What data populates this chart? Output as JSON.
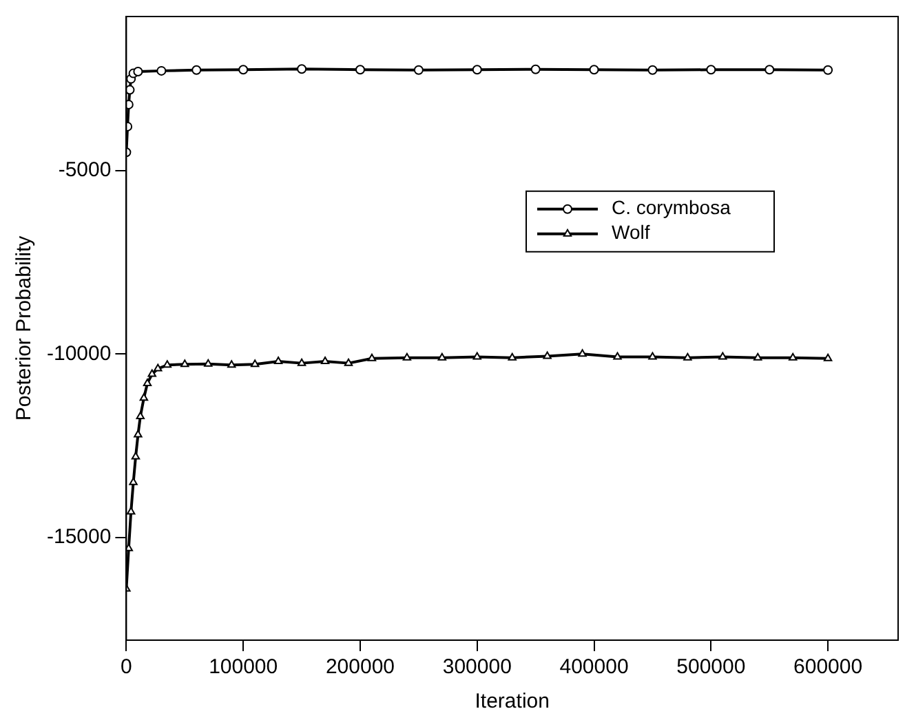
{
  "chart_data": {
    "type": "line",
    "xlabel": "Iteration",
    "ylabel": "Posterior Probability",
    "xlim": [
      0,
      660000
    ],
    "xticks": [
      0,
      100000,
      200000,
      300000,
      400000,
      500000,
      600000
    ],
    "ylim": [
      -17800,
      -800
    ],
    "yticks": [
      -15000,
      -10000,
      -5000
    ],
    "grid": false,
    "legend": "right",
    "line_style": "solid",
    "series": [
      {
        "name": "C. corymbosa",
        "color": "#000000",
        "marker": "circle",
        "x": [
          0,
          1000,
          2000,
          3000,
          4000,
          6000,
          10000,
          30000,
          60000,
          100000,
          150000,
          200000,
          250000,
          300000,
          350000,
          400000,
          450000,
          500000,
          550000,
          600000
        ],
        "values": [
          -4500,
          -3800,
          -3200,
          -2800,
          -2500,
          -2350,
          -2300,
          -2280,
          -2260,
          -2250,
          -2230,
          -2250,
          -2260,
          -2250,
          -2240,
          -2250,
          -2260,
          -2250,
          -2250,
          -2260
        ]
      },
      {
        "name": "Wolf",
        "color": "#000000",
        "marker": "triangle",
        "x": [
          0,
          2000,
          4000,
          6000,
          8000,
          10000,
          12000,
          15000,
          18000,
          22000,
          27000,
          35000,
          50000,
          70000,
          90000,
          110000,
          130000,
          150000,
          170000,
          190000,
          210000,
          240000,
          270000,
          300000,
          330000,
          360000,
          390000,
          420000,
          450000,
          480000,
          510000,
          540000,
          570000,
          600000
        ],
        "values": [
          -16400,
          -15300,
          -14300,
          -13500,
          -12800,
          -12200,
          -11700,
          -11200,
          -10800,
          -10550,
          -10400,
          -10300,
          -10280,
          -10270,
          -10300,
          -10280,
          -10200,
          -10250,
          -10200,
          -10250,
          -10120,
          -10100,
          -10100,
          -10080,
          -10100,
          -10060,
          -10000,
          -10080,
          -10080,
          -10100,
          -10080,
          -10100,
          -10100,
          -10120
        ]
      }
    ]
  }
}
